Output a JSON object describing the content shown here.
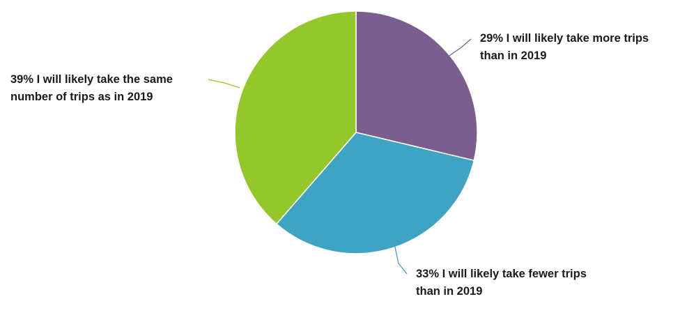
{
  "chart_data": {
    "type": "pie",
    "slices": [
      {
        "value": 29,
        "color": "#7b5e90",
        "label_lines": [
          "29% I will likely take more trips",
          "than in 2019"
        ]
      },
      {
        "value": 33,
        "color": "#3fa3c4",
        "label_lines": [
          "33% I will likely take fewer trips",
          "than in 2019"
        ]
      },
      {
        "value": 39,
        "color": "#94c82a",
        "label_lines": [
          "39% I will likely take the same",
          "number of trips as in 2019"
        ]
      }
    ],
    "start_angle": "12 o'clock",
    "direction": "clockwise",
    "legend": "none",
    "title": ""
  }
}
